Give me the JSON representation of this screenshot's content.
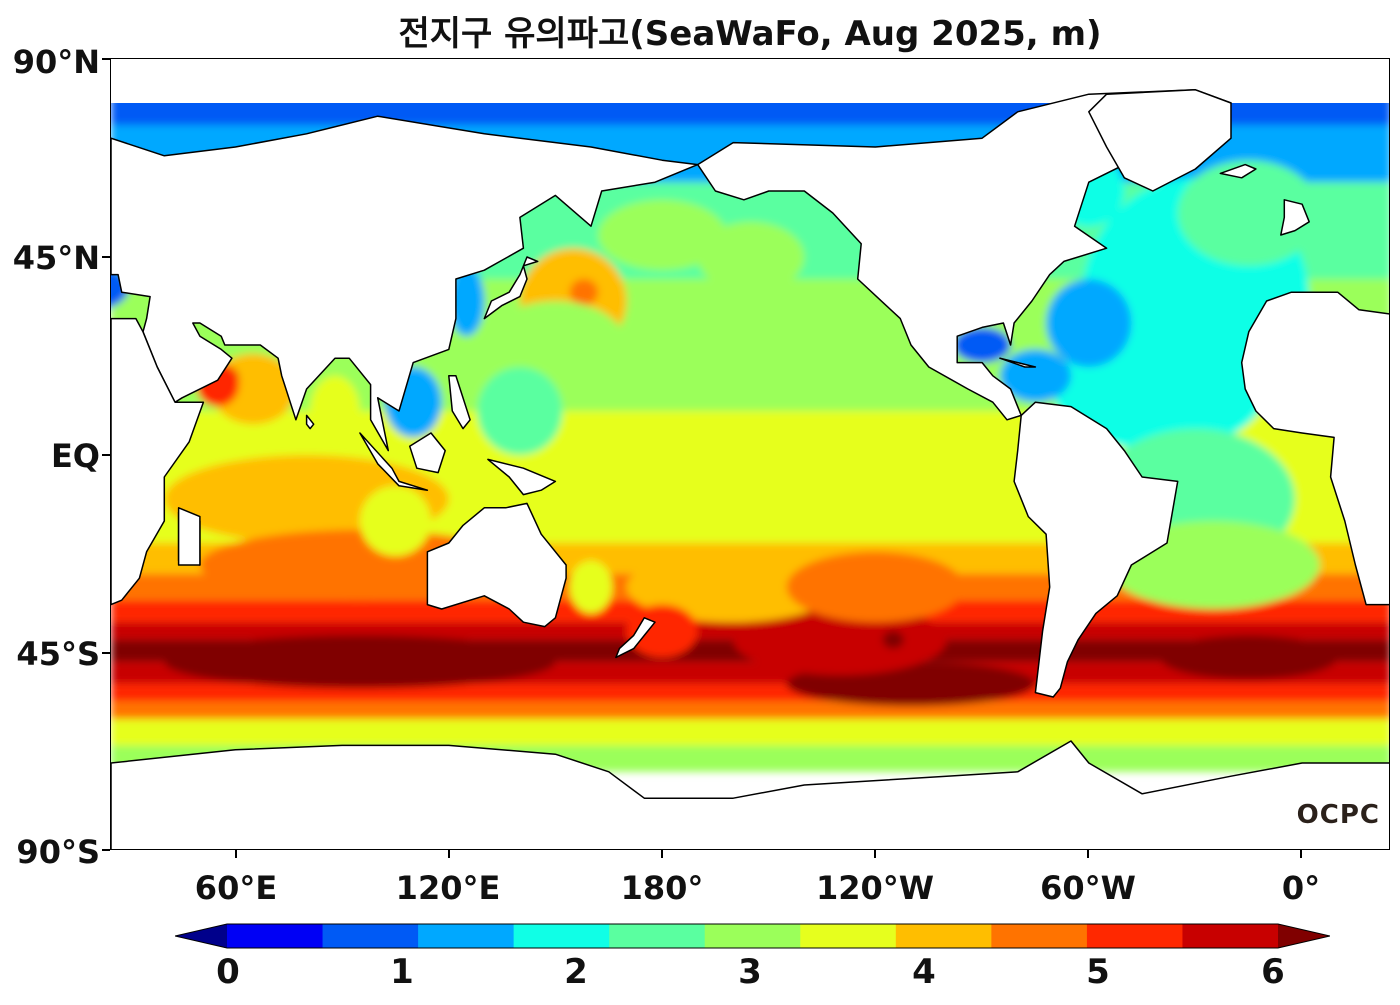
{
  "title": "전지구 유의파고(SeaWaFo, Aug 2025, m)",
  "lat_ticks": [
    "90°N",
    "45°N",
    "EQ",
    "45°S",
    "90°S"
  ],
  "lon_ticks": [
    "60°E",
    "120°E",
    "180°",
    "120°W",
    "60°W",
    "0°"
  ],
  "logo": "OCPC",
  "colorbar": {
    "ticks": [
      "0",
      "1",
      "2",
      "3",
      "4",
      "5",
      "6"
    ],
    "min": 0,
    "max": 6,
    "step": 0.5,
    "extend": "both",
    "colors": [
      "#00008b",
      "#0000f5",
      "#005af5",
      "#00a8ff",
      "#10ffe6",
      "#5affa0",
      "#9bff5a",
      "#e6ff1e",
      "#ffbe00",
      "#ff7300",
      "#ff2800",
      "#c80000",
      "#800000"
    ]
  },
  "chart_data": {
    "type": "heatmap",
    "variable": "significant wave height",
    "units": "m",
    "lon_range": [
      25,
      385
    ],
    "lat_range": [
      -90,
      90
    ],
    "regions": [
      {
        "name": "southern-ocean-indian-max",
        "value": 6.0
      },
      {
        "name": "southern-ocean-pacific-max",
        "value": 5.8
      },
      {
        "name": "arabian-sea-max",
        "value": 5.0
      },
      {
        "name": "south-indian-subtropics",
        "value": 4.2
      },
      {
        "name": "north-pacific-center",
        "value": 2.8
      },
      {
        "name": "north-pacific-hotspot",
        "value": 3.8
      },
      {
        "name": "equatorial-pacific",
        "value": 3.0
      },
      {
        "name": "south-pacific-subtropics",
        "value": 3.6
      },
      {
        "name": "north-atlantic",
        "value": 1.7
      },
      {
        "name": "south-atlantic",
        "value": 2.3
      },
      {
        "name": "arctic-ocean",
        "value": 0.8
      },
      {
        "name": "mediterranean",
        "value": 0.9
      }
    ]
  }
}
